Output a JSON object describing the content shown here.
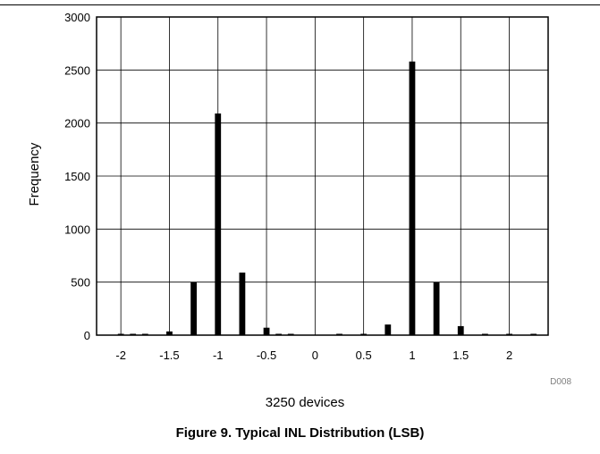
{
  "caption": "Figure 9. Typical INL Distribution (LSB)",
  "figure_code": "D008",
  "chart_data": {
    "type": "bar",
    "title": "",
    "xlabel": "3250 devices",
    "ylabel": "Frequency",
    "xlim": [
      -2.25,
      2.4
    ],
    "ylim": [
      0,
      3000
    ],
    "x_ticks": [
      -2,
      -1.5,
      -1,
      -0.5,
      0,
      0.5,
      1,
      1.5,
      2
    ],
    "x_tick_labels": [
      "-2",
      "-1.5",
      "-1",
      "-0.5",
      "0",
      "0.5",
      "1",
      "1.5",
      "2"
    ],
    "y_ticks": [
      0,
      500,
      1000,
      1500,
      2000,
      2500,
      3000
    ],
    "y_tick_labels": [
      "0",
      "500",
      "1000",
      "1500",
      "2000",
      "2500",
      "3000"
    ],
    "grid": true,
    "bar_width": 0.0625,
    "bars": [
      {
        "x": -2.0,
        "value": 2
      },
      {
        "x": -1.875,
        "value": 3
      },
      {
        "x": -1.75,
        "value": 5
      },
      {
        "x": -1.5,
        "value": 35
      },
      {
        "x": -1.25,
        "value": 500
      },
      {
        "x": -1.0,
        "value": 2090
      },
      {
        "x": -0.75,
        "value": 590
      },
      {
        "x": -0.5,
        "value": 70
      },
      {
        "x": -0.375,
        "value": 2
      },
      {
        "x": -0.25,
        "value": 2
      },
      {
        "x": 0.25,
        "value": 2
      },
      {
        "x": 0.5,
        "value": 12
      },
      {
        "x": 0.75,
        "value": 100
      },
      {
        "x": 1.0,
        "value": 2580
      },
      {
        "x": 1.25,
        "value": 500
      },
      {
        "x": 1.5,
        "value": 85
      },
      {
        "x": 1.75,
        "value": 3
      },
      {
        "x": 2.0,
        "value": 2
      },
      {
        "x": 2.25,
        "value": 2
      }
    ]
  }
}
